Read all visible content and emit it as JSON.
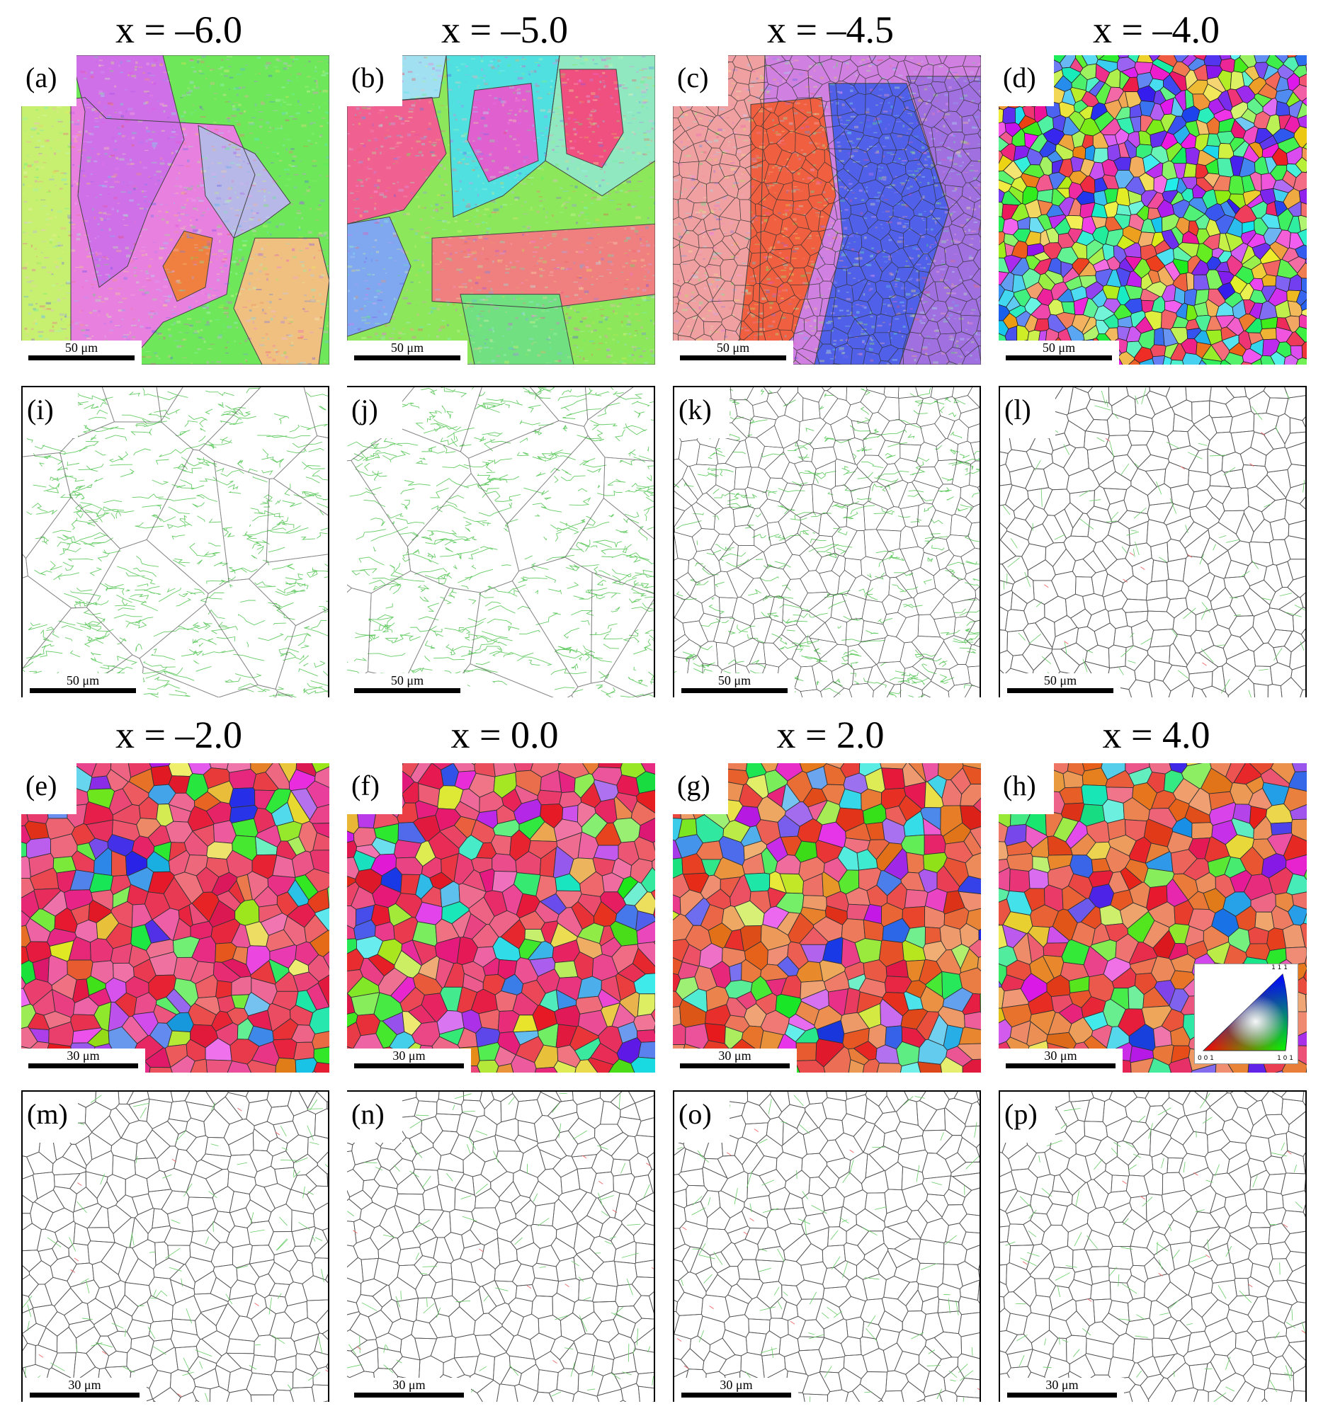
{
  "titles": [
    "x = –6.0",
    "x = –5.0",
    "x = –4.5",
    "x = –4.0",
    "x = –2.0",
    "x = 0.0",
    "x = 2.0",
    "x = 4.0"
  ],
  "panels": {
    "a": {
      "label": "(a)",
      "scale": "50 μm"
    },
    "b": {
      "label": "(b)",
      "scale": "50 μm"
    },
    "c": {
      "label": "(c)",
      "scale": "50 μm"
    },
    "d": {
      "label": "(d)",
      "scale": "50 μm"
    },
    "i": {
      "label": "(i)",
      "scale": "50 μm"
    },
    "j": {
      "label": "(j)",
      "scale": "50 μm"
    },
    "k": {
      "label": "(k)",
      "scale": "50 μm"
    },
    "l": {
      "label": "(l)",
      "scale": "50 μm"
    },
    "e": {
      "label": "(e)",
      "scale": "30 μm"
    },
    "f": {
      "label": "(f)",
      "scale": "30 μm"
    },
    "g": {
      "label": "(g)",
      "scale": "30 μm"
    },
    "h": {
      "label": "(h)",
      "scale": "30 μm"
    },
    "m": {
      "label": "(m)",
      "scale": "30 μm"
    },
    "n": {
      "label": "(n)",
      "scale": "30 μm"
    },
    "o": {
      "label": "(o)",
      "scale": "30 μm"
    },
    "p": {
      "label": "(p)",
      "scale": "30 μm"
    }
  },
  "ipf_legend": {
    "top": "1 1 1",
    "left": "0 0 1",
    "right": "1 0 1"
  },
  "colors": {
    "high_angle_boundary": "#555555",
    "low_angle_boundary": "#66cc66",
    "twin_boundary": "#ee6666"
  }
}
